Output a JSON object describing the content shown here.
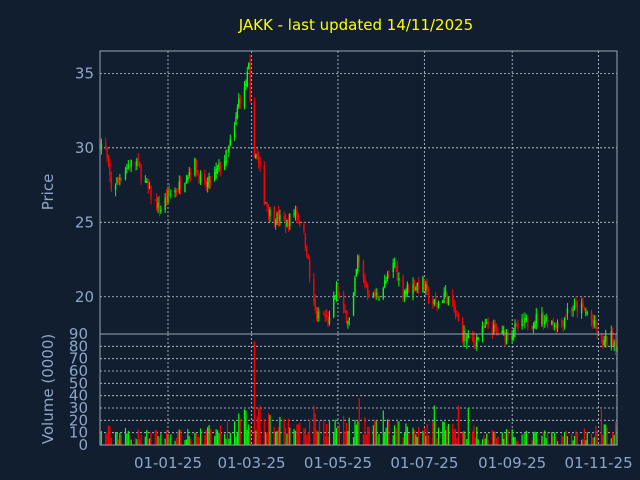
{
  "chart_data": {
    "type": "candlestick",
    "title": "JAKK - last updated 14/11/2025",
    "colors": {
      "background": "#111e2f",
      "frame": "#9aa4b4",
      "grid": "#c8ccd4",
      "up": "#00ff00",
      "down": "#ff0000",
      "title": "#ffff00",
      "text": "#8ea6c8"
    },
    "price_panel": {
      "ylabel": "Price",
      "ylim": [
        17.5,
        36.5
      ],
      "yticks": [
        20,
        25,
        30,
        35
      ],
      "ytick_labels": [
        "20",
        "25",
        "30",
        "35"
      ]
    },
    "volume_panel": {
      "ylabel": "Volume (0000)",
      "ylim": [
        0,
        90
      ],
      "yticks": [
        0,
        10,
        20,
        30,
        40,
        50,
        60,
        70,
        80,
        90
      ],
      "ytick_labels": [
        "0",
        "10",
        "20",
        "30",
        "40",
        "50",
        "60",
        "70",
        "80",
        "90"
      ]
    },
    "x_axis": {
      "start": "2024-11-14",
      "end": "2025-11-14",
      "ticks": [
        "2025-01-01",
        "2025-03-01",
        "2025-05-01",
        "2025-07-01",
        "2025-09-01",
        "2025-11-01"
      ],
      "tick_labels": [
        "01-01-25",
        "01-03-25",
        "01-05-25",
        "01-07-25",
        "01-09-25",
        "01-11-25"
      ]
    },
    "price_anchors": [
      [
        "2024-11-14",
        30.4
      ],
      [
        "2024-11-18",
        29.8
      ],
      [
        "2024-11-22",
        27.3
      ],
      [
        "2024-11-26",
        27.8
      ],
      [
        "2024-12-02",
        28.6
      ],
      [
        "2024-12-06",
        28.9
      ],
      [
        "2024-12-10",
        29.0
      ],
      [
        "2024-12-16",
        27.6
      ],
      [
        "2024-12-20",
        26.8
      ],
      [
        "2024-12-26",
        25.8
      ],
      [
        "2025-01-02",
        26.9
      ],
      [
        "2025-01-08",
        27.3
      ],
      [
        "2025-01-14",
        28.2
      ],
      [
        "2025-01-20",
        28.9
      ],
      [
        "2025-01-26",
        27.2
      ],
      [
        "2025-02-01",
        27.9
      ],
      [
        "2025-02-06",
        28.6
      ],
      [
        "2025-02-12",
        29.6
      ],
      [
        "2025-02-17",
        31.3
      ],
      [
        "2025-02-20",
        33.2
      ],
      [
        "2025-02-24",
        33.8
      ],
      [
        "2025-02-27",
        35.3
      ],
      [
        "2025-03-01",
        30.2
      ],
      [
        "2025-03-05",
        29.4
      ],
      [
        "2025-03-10",
        26.7
      ],
      [
        "2025-03-14",
        25.6
      ],
      [
        "2025-03-20",
        25.2
      ],
      [
        "2025-03-26",
        24.9
      ],
      [
        "2025-04-01",
        25.8
      ],
      [
        "2025-04-05",
        24.9
      ],
      [
        "2025-04-09",
        23.2
      ],
      [
        "2025-04-12",
        20.3
      ],
      [
        "2025-04-16",
        18.6
      ],
      [
        "2025-04-20",
        18.8
      ],
      [
        "2025-04-25",
        18.3
      ],
      [
        "2025-04-30",
        20.6
      ],
      [
        "2025-05-05",
        18.9
      ],
      [
        "2025-05-10",
        18.4
      ],
      [
        "2025-05-15",
        22.5
      ],
      [
        "2025-05-20",
        20.9
      ],
      [
        "2025-05-25",
        19.9
      ],
      [
        "2025-05-30",
        20.2
      ],
      [
        "2025-06-05",
        21.2
      ],
      [
        "2025-06-10",
        22.3
      ],
      [
        "2025-06-15",
        20.3
      ],
      [
        "2025-06-20",
        20.6
      ],
      [
        "2025-06-25",
        20.8
      ],
      [
        "2025-06-30",
        20.9
      ],
      [
        "2025-07-05",
        19.7
      ],
      [
        "2025-07-10",
        19.4
      ],
      [
        "2025-07-15",
        20.2
      ],
      [
        "2025-07-20",
        19.6
      ],
      [
        "2025-07-25",
        18.2
      ],
      [
        "2025-07-30",
        17.2
      ],
      [
        "2025-08-05",
        17.0
      ],
      [
        "2025-08-10",
        17.6
      ],
      [
        "2025-08-15",
        18.0
      ],
      [
        "2025-08-20",
        17.7
      ],
      [
        "2025-08-25",
        17.4
      ],
      [
        "2025-08-30",
        17.6
      ],
      [
        "2025-09-05",
        17.9
      ],
      [
        "2025-09-10",
        18.2
      ],
      [
        "2025-09-15",
        18.4
      ],
      [
        "2025-09-20",
        18.6
      ],
      [
        "2025-09-25",
        18.5
      ],
      [
        "2025-09-30",
        18.3
      ],
      [
        "2025-10-05",
        18.1
      ],
      [
        "2025-10-10",
        19.1
      ],
      [
        "2025-10-15",
        19.3
      ],
      [
        "2025-10-20",
        19.2
      ],
      [
        "2025-10-25",
        18.8
      ],
      [
        "2025-10-30",
        17.8
      ],
      [
        "2025-11-03",
        16.9
      ],
      [
        "2025-11-06",
        17.0
      ],
      [
        "2025-11-10",
        17.3
      ],
      [
        "2025-11-14",
        16.7
      ]
    ],
    "volume_anchors": [
      [
        "2024-11-14",
        12
      ],
      [
        "2024-12-15",
        9
      ],
      [
        "2025-01-15",
        9
      ],
      [
        "2025-02-15",
        14
      ],
      [
        "2025-03-01",
        28
      ],
      [
        "2025-03-20",
        16
      ],
      [
        "2025-04-15",
        18
      ],
      [
        "2025-05-15",
        16
      ],
      [
        "2025-06-15",
        14
      ],
      [
        "2025-07-15",
        16
      ],
      [
        "2025-08-15",
        10
      ],
      [
        "2025-09-15",
        8
      ],
      [
        "2025-10-15",
        9
      ],
      [
        "2025-11-14",
        14
      ]
    ],
    "volume_spikes": [
      [
        "2025-03-03",
        84
      ],
      [
        "2025-03-07",
        32
      ],
      [
        "2025-03-13",
        26
      ],
      [
        "2025-02-25",
        28
      ],
      [
        "2025-04-14",
        32
      ],
      [
        "2025-05-16",
        38
      ],
      [
        "2025-06-02",
        28
      ],
      [
        "2025-07-08",
        32
      ],
      [
        "2025-07-25",
        32
      ],
      [
        "2025-08-01",
        30
      ],
      [
        "2025-11-03",
        30
      ]
    ]
  }
}
